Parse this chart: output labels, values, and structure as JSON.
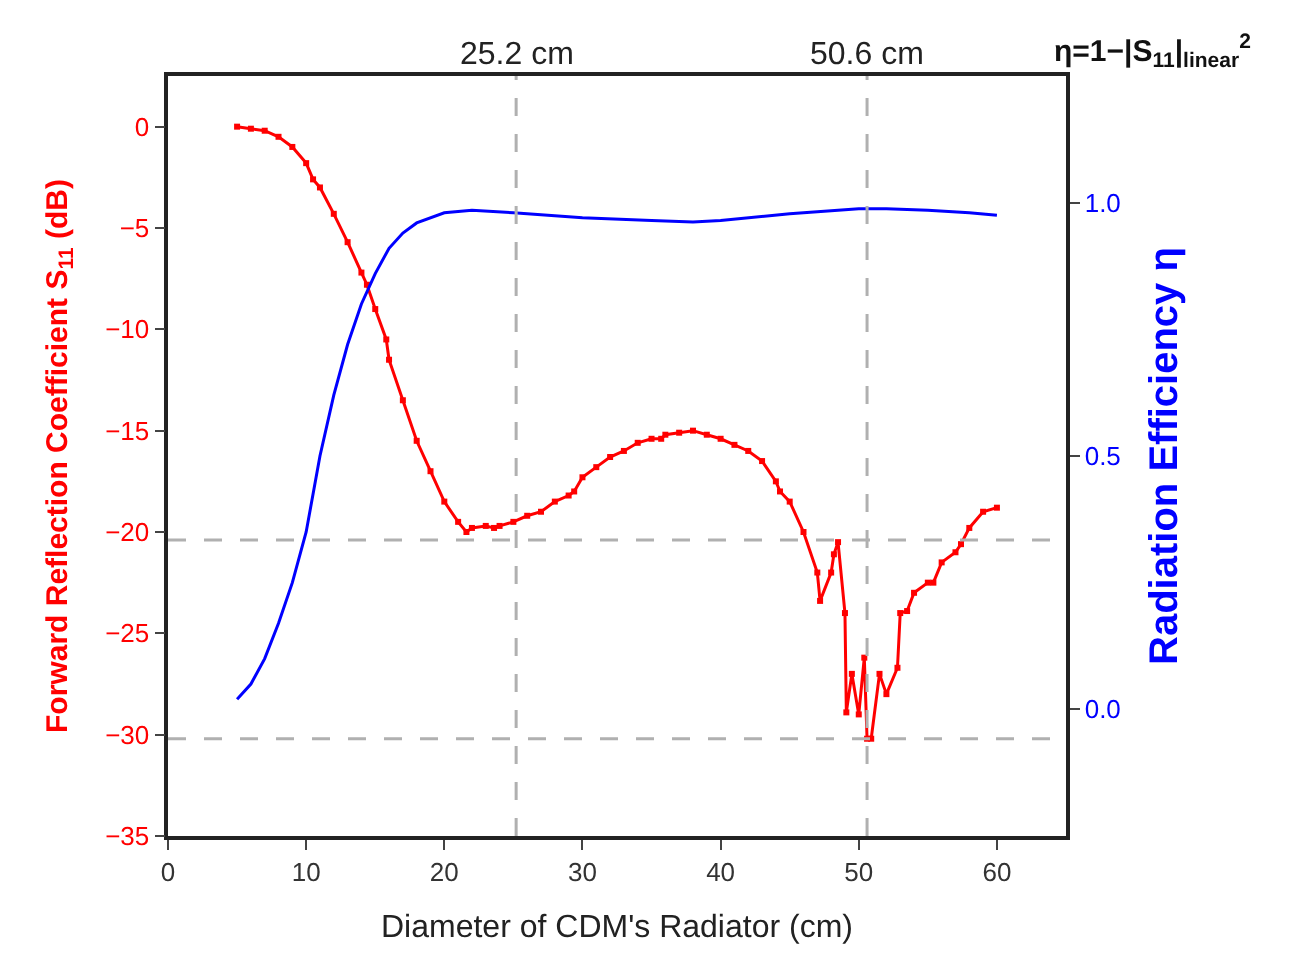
{
  "chart_data": {
    "type": "line",
    "xlabel": "Diameter of CDM's Radiator (cm)",
    "ylabel": "Forward Reflection Coefficient S$_{11}$ (dB)",
    "y2label": "Radiation Efficiency η",
    "annotations": [
      "η=1−|S$_{11}$|$_{linear}$$^{2}$"
    ],
    "xlim": [
      0,
      65
    ],
    "xticks": [
      0,
      10,
      20,
      30,
      40,
      50,
      60
    ],
    "ylim": [
      -35,
      2.5
    ],
    "yticks": [
      -35,
      -30,
      -25,
      -20,
      -15,
      -10,
      -5,
      0
    ],
    "y2lim": [
      -0.25,
      1.25
    ],
    "y2ticks": [
      {
        "value": 0,
        "label": "0.0"
      },
      {
        "value": 0.5,
        "label": "0.5"
      },
      {
        "value": 1,
        "label": "1.0"
      }
    ],
    "line_style": "solid",
    "ref_lines": [
      {
        "axis": "x",
        "value": 25.2,
        "label": "25.2 cm",
        "color": "#b0b0b0",
        "line_style": "dashed"
      },
      {
        "axis": "x",
        "value": 50.6,
        "label": "50.6 cm",
        "color": "#b0b0b0",
        "line_style": "dashed"
      },
      {
        "axis": "y",
        "value": -20.4,
        "color": "#b0b0b0",
        "line_style": "dashed"
      },
      {
        "axis": "y",
        "value": -30.2,
        "color": "#b0b0b0",
        "line_style": "dashed"
      }
    ],
    "series": [
      {
        "color": "#ff0000",
        "marker": "square",
        "x": [
          5,
          6,
          7,
          8,
          9,
          10,
          10.5,
          11,
          12,
          13,
          14,
          14.4,
          15,
          15.8,
          16,
          17,
          18,
          19,
          20,
          21,
          21.6,
          22,
          23,
          23.6,
          24,
          25,
          26,
          27,
          28,
          29,
          29.4,
          30,
          31,
          32,
          33,
          34,
          35,
          35.7,
          36,
          37,
          38,
          39,
          40,
          41,
          42,
          43,
          44,
          44.3,
          45,
          46,
          47,
          47.2,
          48,
          48.2,
          48.5,
          49,
          49.1,
          49.5,
          50,
          50.4,
          50.6,
          50.9,
          51.5,
          52,
          52.8,
          53,
          53.5,
          54,
          55,
          55.4,
          56,
          57,
          57.4,
          58,
          59,
          60
        ],
        "values": [
          0,
          -0.1,
          -0.2,
          -0.5,
          -1,
          -1.8,
          -2.6,
          -3,
          -4.3,
          -5.7,
          -7.2,
          -7.8,
          -9,
          -10.5,
          -11.5,
          -13.5,
          -15.5,
          -17,
          -18.5,
          -19.5,
          -20,
          -19.8,
          -19.7,
          -19.8,
          -19.7,
          -19.5,
          -19.2,
          -19,
          -18.5,
          -18.2,
          -18,
          -17.3,
          -16.8,
          -16.3,
          -16,
          -15.6,
          -15.4,
          -15.4,
          -15.2,
          -15.1,
          -15,
          -15.2,
          -15.4,
          -15.7,
          -16,
          -16.5,
          -17.5,
          -18,
          -18.5,
          -20,
          -22,
          -23.4,
          -22,
          -21.1,
          -20.5,
          -24,
          -28.9,
          -27,
          -29,
          -26.2,
          -30.2,
          -30.2,
          -27,
          -28,
          -26.7,
          -24,
          -23.9,
          -23,
          -22.5,
          -22.5,
          -21.5,
          -21,
          -20.6,
          -19.8,
          -19,
          -18.8
        ]
      },
      {
        "color": "#0000ff",
        "axis": "y2",
        "marker": "none",
        "x": [
          5,
          6,
          7,
          8,
          9,
          10,
          11,
          12,
          13,
          14,
          15,
          16,
          17,
          18,
          20,
          22,
          25,
          30,
          35,
          38,
          40,
          45,
          50,
          52,
          55,
          58,
          60
        ],
        "values": [
          0.02,
          0.05,
          0.1,
          0.17,
          0.25,
          0.35,
          0.5,
          0.62,
          0.72,
          0.8,
          0.86,
          0.91,
          0.94,
          0.96,
          0.98,
          0.985,
          0.98,
          0.97,
          0.965,
          0.962,
          0.965,
          0.978,
          0.988,
          0.988,
          0.985,
          0.98,
          0.975
        ]
      }
    ]
  }
}
